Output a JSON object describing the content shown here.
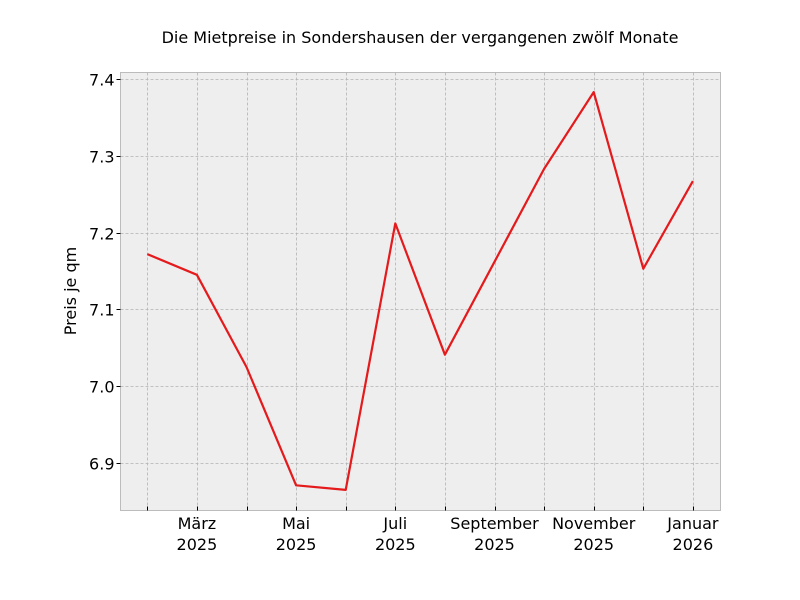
{
  "chart_data": {
    "type": "line",
    "title": "Die Mietpreise in Sondershausen der vergangenen zwölf Monate",
    "xlabel": "",
    "ylabel": "Preis je qm",
    "x": [
      "2025-02",
      "2025-03",
      "2025-04",
      "2025-05",
      "2025-06",
      "2025-07",
      "2025-08",
      "2025-09",
      "2025-10",
      "2025-11",
      "2025-12",
      "2026-01"
    ],
    "series": [
      {
        "name": "Mietpreis",
        "color": "#e41a1c",
        "values": [
          7.172,
          7.145,
          7.025,
          6.871,
          6.865,
          7.212,
          7.041,
          7.162,
          7.283,
          7.383,
          7.153,
          7.267
        ]
      }
    ],
    "ylim": [
      6.839,
      7.41
    ],
    "yticks": [
      6.9,
      7.0,
      7.1,
      7.2,
      7.3,
      7.4
    ],
    "ytick_labels": [
      "6.9",
      "7.0",
      "7.1",
      "7.2",
      "7.3",
      "7.4"
    ],
    "xtick_labels": [
      {
        "month": "März",
        "year": "2025"
      },
      {
        "month": "Mai",
        "year": "2025"
      },
      {
        "month": "Juli",
        "year": "2025"
      },
      {
        "month": "September",
        "year": "2025"
      },
      {
        "month": "November",
        "year": "2025"
      },
      {
        "month": "Januar",
        "year": "2026"
      }
    ],
    "grid": true,
    "legend": false,
    "colors": {
      "background": "#eeeeee",
      "grid": "#b2b2b2",
      "spine": "#bcbcbc",
      "line": "#e41a1c"
    }
  }
}
